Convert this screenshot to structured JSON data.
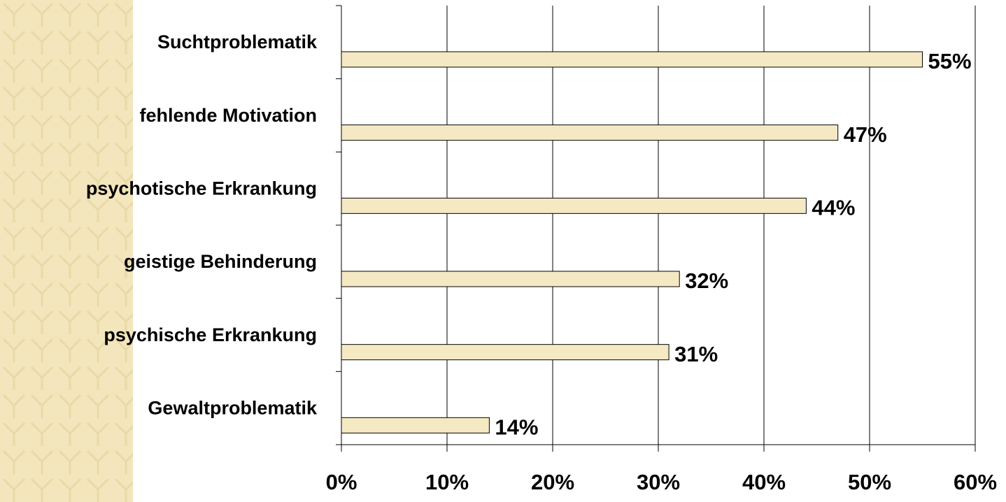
{
  "chart_data": {
    "type": "bar",
    "orientation": "horizontal",
    "categories": [
      "Suchtproblematik",
      "fehlende Motivation",
      "psychotische Erkrankung",
      "geistige Behinderung",
      "psychische Erkrankung",
      "Gewaltproblematik"
    ],
    "values": [
      55,
      47,
      44,
      32,
      31,
      14
    ],
    "value_labels": [
      "55%",
      "47%",
      "44%",
      "32%",
      "31%",
      "14%"
    ],
    "color": "#f5e9c4",
    "xlim": [
      0,
      60
    ],
    "xticks": [
      {
        "value": 0,
        "label": "0%"
      },
      {
        "value": 10,
        "label": "10%"
      },
      {
        "value": 20,
        "label": "20%"
      },
      {
        "value": 30,
        "label": "30%"
      },
      {
        "value": 40,
        "label": "40%"
      },
      {
        "value": 50,
        "label": "50%"
      },
      {
        "value": 60,
        "label": "60%"
      }
    ],
    "grid": true
  }
}
